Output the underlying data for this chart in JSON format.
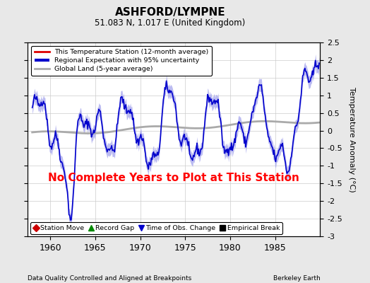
{
  "title": "ASHFORD/LYMPNE",
  "subtitle": "51.083 N, 1.017 E (United Kingdom)",
  "ylabel": "Temperature Anomaly (°C)",
  "xlabel_left": "Data Quality Controlled and Aligned at Breakpoints",
  "xlabel_right": "Berkeley Earth",
  "no_data_text": "No Complete Years to Plot at This Station",
  "ylim": [
    -3,
    2.5
  ],
  "xlim": [
    1957.5,
    1990.0
  ],
  "yticks": [
    -3,
    -2.5,
    -2,
    -1.5,
    -1,
    -0.5,
    0,
    0.5,
    1,
    1.5,
    2,
    2.5
  ],
  "ytick_labels": [
    "-3",
    "-2.5",
    "-2",
    "-1.5",
    "-1",
    "-0.5",
    "0",
    "0.5",
    "1",
    "1.5",
    "2",
    "2.5"
  ],
  "xticks": [
    1960,
    1965,
    1970,
    1975,
    1980,
    1985
  ],
  "background_color": "#e8e8e8",
  "plot_bg_color": "#ffffff",
  "regional_color": "#0000cc",
  "regional_fill_color": "#aaaaee",
  "global_color": "#aaaaaa",
  "no_data_color": "#ff0000",
  "legend1_items": [
    {
      "label": "This Temperature Station (12-month average)",
      "color": "#dd0000",
      "lw": 2
    },
    {
      "label": "Regional Expectation with 95% uncertainty",
      "color": "#0000cc",
      "lw": 2
    },
    {
      "label": "Global Land (5-year average)",
      "color": "#aaaaaa",
      "lw": 2
    }
  ],
  "legend2_items": [
    {
      "label": "Station Move",
      "marker": "D",
      "color": "#cc0000"
    },
    {
      "label": "Record Gap",
      "marker": "^",
      "color": "#008800"
    },
    {
      "label": "Time of Obs. Change",
      "marker": "v",
      "color": "#0000cc"
    },
    {
      "label": "Empirical Break",
      "marker": "s",
      "color": "#000000"
    }
  ],
  "seed": 42,
  "n_points": 384,
  "x_start": 1958.0,
  "x_end": 1989.9
}
